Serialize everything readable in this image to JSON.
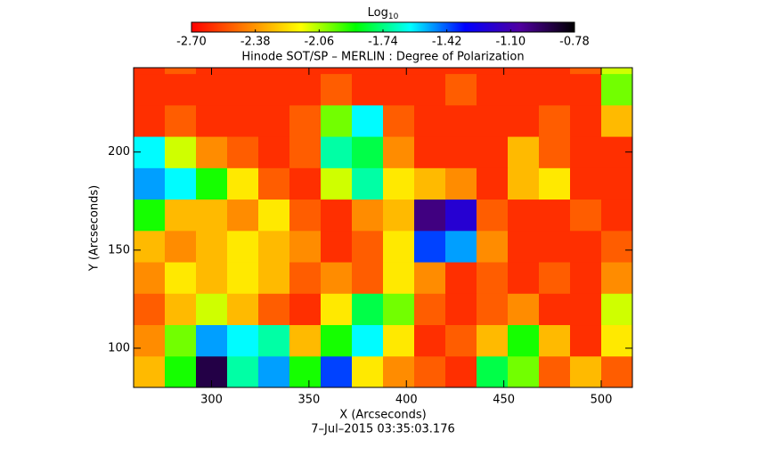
{
  "chart_data": {
    "type": "heatmap",
    "title": "Hinode SOT/SP – MERLIN : Degree of Polarization",
    "subtitle": "7–Jul–2015 03:35:03.176",
    "x_label": "X (Arcseconds)",
    "y_label": "Y (Arcseconds)",
    "colorbar_title": {
      "base": "Log",
      "sub": "10"
    },
    "colormap": [
      "#ff0000",
      "#ff8000",
      "#ffff00",
      "#00ff00",
      "#00ffff",
      "#0000ff",
      "#5000a0",
      "#000000"
    ],
    "clim": [
      -2.7,
      -0.78
    ],
    "cticks": [
      {
        "value": -2.7,
        "label": "-2.70"
      },
      -2.38,
      -2.06,
      -1.74,
      -1.42,
      {
        "value": -1.1,
        "label": "-1.10"
      },
      -0.78
    ],
    "xlim": [
      260,
      516
    ],
    "ylim": [
      80,
      243
    ],
    "xticks": [
      300,
      350,
      400,
      450,
      500
    ],
    "yticks": [
      100,
      150,
      200
    ],
    "x": [
      268,
      284,
      300,
      316,
      332,
      348,
      364,
      380,
      396,
      412,
      428,
      444,
      460,
      476,
      492,
      508
    ],
    "y": [
      88,
      104,
      120,
      136,
      152,
      168,
      184,
      200,
      216,
      232,
      248
    ],
    "z": [
      [
        -2.3,
        -1.9,
        -0.9,
        -1.7,
        -1.5,
        -1.9,
        -1.4,
        -2.2,
        -2.4,
        -2.5,
        -2.6,
        -1.8,
        -2.0,
        -2.5,
        -2.3,
        -2.5
      ],
      [
        -2.4,
        -2.0,
        -1.5,
        -1.6,
        -1.7,
        -2.3,
        -1.9,
        -1.6,
        -2.2,
        -2.6,
        -2.5,
        -2.3,
        -1.9,
        -2.3,
        -2.6,
        -2.2
      ],
      [
        -2.5,
        -2.3,
        -2.1,
        -2.3,
        -2.5,
        -2.6,
        -2.2,
        -1.8,
        -2.0,
        -2.5,
        -2.6,
        -2.5,
        -2.4,
        -2.6,
        -2.6,
        -2.1
      ],
      [
        -2.4,
        -2.2,
        -2.3,
        -2.2,
        -2.3,
        -2.5,
        -2.4,
        -2.5,
        -2.2,
        -2.4,
        -2.6,
        -2.5,
        -2.6,
        -2.5,
        -2.6,
        -2.4
      ],
      [
        -2.3,
        -2.4,
        -2.3,
        -2.2,
        -2.3,
        -2.4,
        -2.6,
        -2.5,
        -2.2,
        -1.4,
        -1.5,
        -2.4,
        -2.6,
        -2.6,
        -2.6,
        -2.5
      ],
      [
        -1.9,
        -2.3,
        -2.3,
        -2.4,
        -2.2,
        -2.5,
        -2.6,
        -2.4,
        -2.3,
        -1.0,
        -1.2,
        -2.5,
        -2.6,
        -2.6,
        -2.5,
        -2.6
      ],
      [
        -1.5,
        -1.6,
        -1.9,
        -2.2,
        -2.5,
        -2.6,
        -2.1,
        -1.7,
        -2.2,
        -2.3,
        -2.4,
        -2.6,
        -2.3,
        -2.2,
        -2.6,
        -2.6
      ],
      [
        -1.6,
        -2.1,
        -2.4,
        -2.5,
        -2.6,
        -2.5,
        -1.7,
        -1.8,
        -2.4,
        -2.6,
        -2.6,
        -2.6,
        -2.3,
        -2.5,
        -2.6,
        -2.6
      ],
      [
        -2.6,
        -2.5,
        -2.6,
        -2.6,
        -2.6,
        -2.5,
        -2.0,
        -1.6,
        -2.5,
        -2.6,
        -2.6,
        -2.6,
        -2.6,
        -2.5,
        -2.6,
        -2.3
      ],
      [
        -2.6,
        -2.6,
        -2.6,
        -2.6,
        -2.6,
        -2.6,
        -2.5,
        -2.6,
        -2.6,
        -2.6,
        -2.5,
        -2.6,
        -2.6,
        -2.6,
        -2.6,
        -2.0
      ],
      [
        -2.6,
        -2.5,
        -2.6,
        -2.6,
        -2.6,
        -2.6,
        -2.6,
        -2.6,
        -2.6,
        -2.6,
        -2.6,
        -2.6,
        -2.6,
        -2.6,
        -2.5,
        -2.1
      ]
    ]
  }
}
